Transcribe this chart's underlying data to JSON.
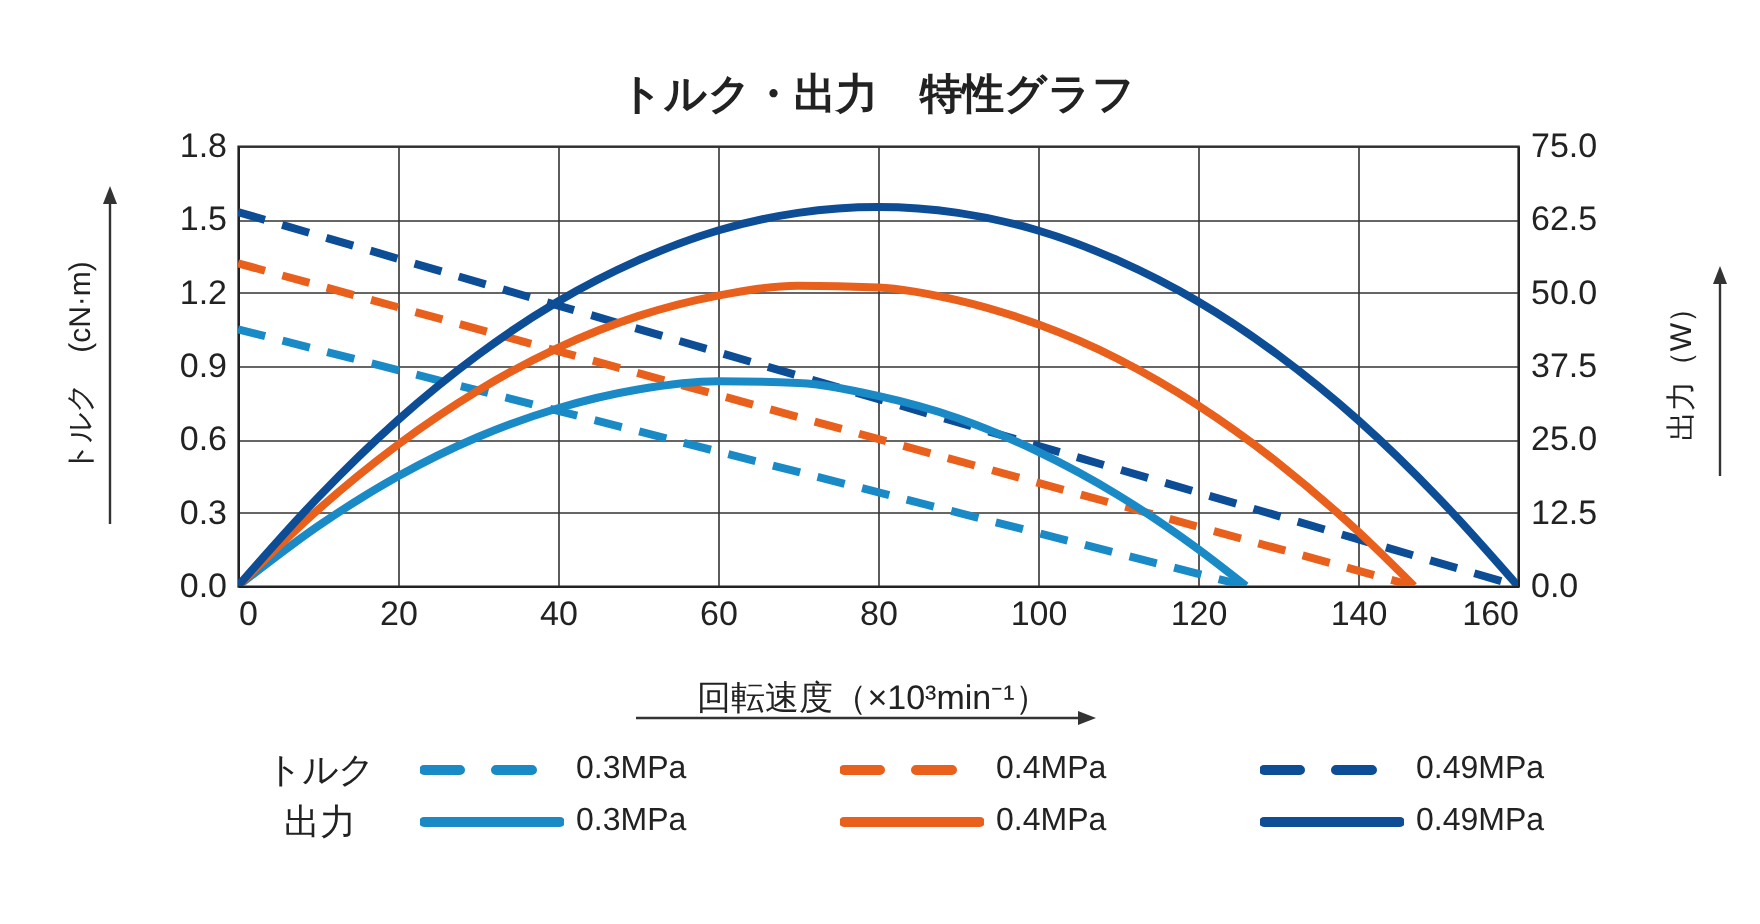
{
  "chart_data": {
    "type": "line",
    "title": "トルク・出力　特性グラフ",
    "xlabel": "回転速度（×10³min⁻¹）",
    "ylabel": "トルク　(cN·m)",
    "y2label": "出力（W）",
    "annotations": [
      "トルク",
      "出力"
    ],
    "xlim": [
      0,
      160
    ],
    "xticks": [
      0,
      20,
      40,
      60,
      80,
      100,
      120,
      140,
      160
    ],
    "ylim": [
      0,
      1.8
    ],
    "yticks": [
      {
        "value": 0,
        "label": "0.0"
      },
      0.3,
      0.6,
      0.9,
      1.2,
      1.5,
      1.8
    ],
    "y2lim": [
      0,
      75
    ],
    "y2ticks": [
      {
        "value": 0,
        "label": "0.0"
      },
      12.5,
      {
        "value": 25,
        "label": "25.0"
      },
      37.5,
      {
        "value": 50,
        "label": "50.0"
      },
      62.5,
      {
        "value": 75,
        "label": "75.0"
      }
    ],
    "grid": true,
    "legend": "bottom",
    "series": [
      {
        "name": "0.3MPa",
        "color": "#1a8ac6",
        "line_style": "dashed",
        "x": [
          0,
          126
        ],
        "values": [
          1.05,
          0
        ]
      },
      {
        "name": "0.4MPa",
        "color": "#e8601c",
        "line_style": "dashed",
        "x": [
          0,
          147
        ],
        "values": [
          1.32,
          0
        ]
      },
      {
        "name": "0.49MPa",
        "color": "#0c4d96",
        "line_style": "dashed",
        "x": [
          0,
          160
        ],
        "values": [
          1.53,
          0
        ]
      },
      {
        "name": "0.3MPa",
        "color": "#1a8ac6",
        "line_style": "solid",
        "axis": "y2",
        "x": [
          0,
          10,
          20,
          30,
          40,
          50,
          60,
          70,
          80,
          90,
          100,
          110,
          120,
          126
        ],
        "values": [
          0,
          10.2,
          18.7,
          25.4,
          30.3,
          33.5,
          34.9,
          34.6,
          32.4,
          28.6,
          22.9,
          15.5,
          6.3,
          0
        ]
      },
      {
        "name": "0.4MPa",
        "color": "#e8601c",
        "line_style": "solid",
        "axis": "y2",
        "x": [
          0,
          10,
          20,
          30,
          40,
          50,
          60,
          70,
          80,
          90,
          100,
          110,
          120,
          130,
          140,
          147
        ],
        "values": [
          0,
          13.0,
          24.1,
          33.3,
          40.6,
          46.0,
          49.5,
          51.2,
          50.9,
          48.7,
          44.6,
          38.7,
          30.8,
          21.0,
          9.3,
          0
        ]
      },
      {
        "name": "0.49MPa",
        "color": "#0c4d96",
        "line_style": "solid",
        "axis": "y2",
        "x": [
          0,
          10,
          20,
          30,
          40,
          50,
          60,
          70,
          80,
          90,
          100,
          110,
          120,
          130,
          140,
          150,
          160
        ],
        "values": [
          0,
          15.1,
          28.3,
          39.4,
          48.5,
          55.5,
          60.6,
          63.6,
          64.6,
          63.6,
          60.6,
          55.5,
          48.5,
          39.4,
          28.3,
          15.1,
          0
        ]
      }
    ]
  }
}
